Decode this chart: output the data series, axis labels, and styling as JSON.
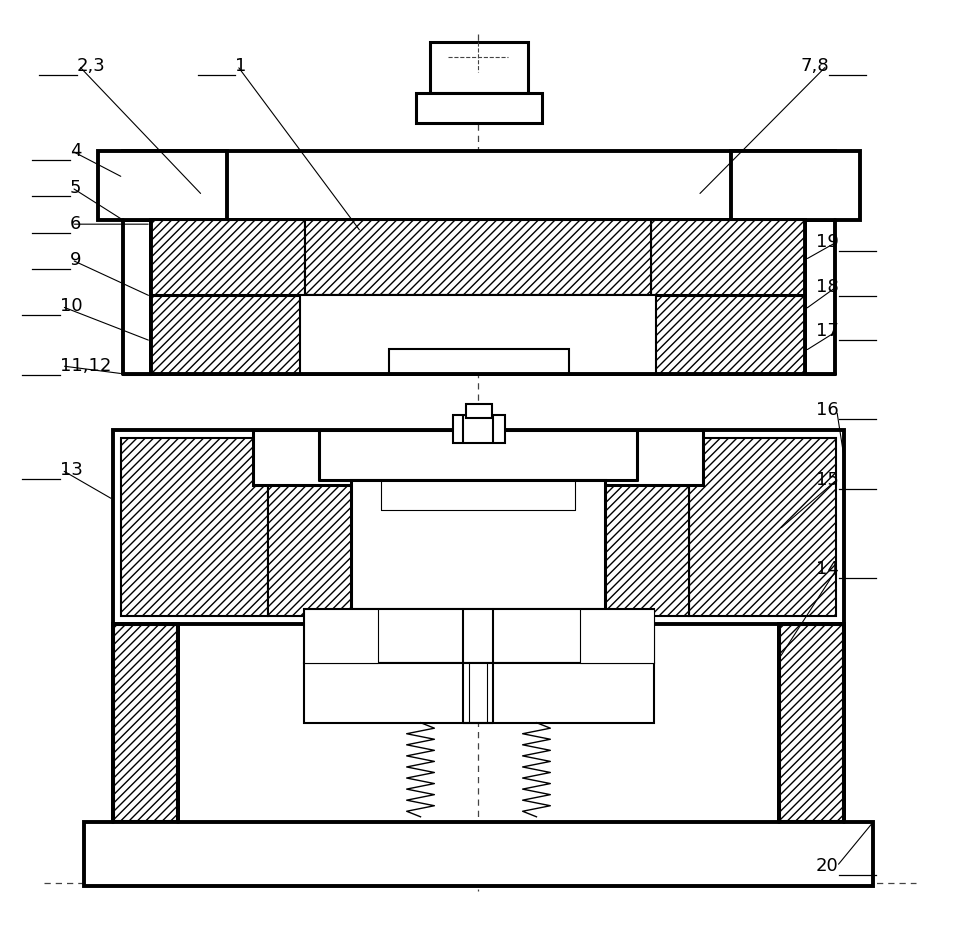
{
  "bg_color": "#ffffff",
  "line_color": "#000000",
  "label_color": "#000000",
  "label_font_size": 13,
  "lw_thin": 0.8,
  "lw_med": 1.5,
  "lw_thick": 2.2,
  "lw_vthick": 2.8
}
